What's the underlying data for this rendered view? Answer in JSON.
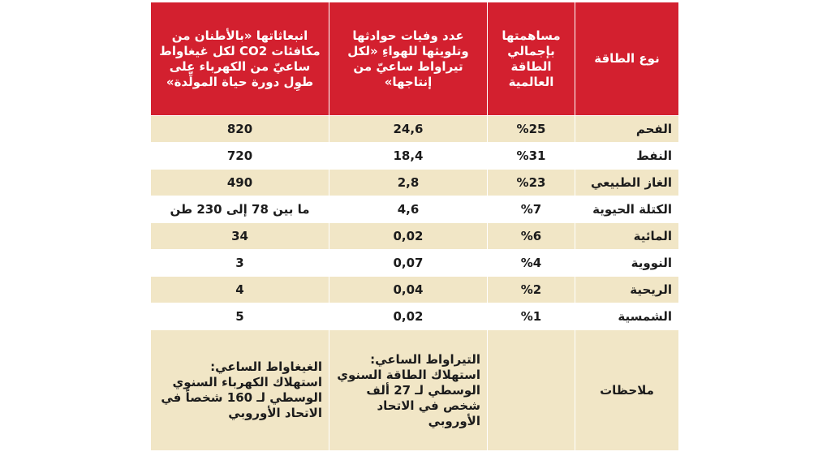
{
  "headers": {
    "type": "نوع الطاقة",
    "share": "مساهمتها بإجمالي الطاقة العالمية",
    "deaths": "عدد وفيات حوادثها وتلويثها للهواءِ «لكل تيراواط ساعيّ من إنتاجها»",
    "emissions": "انبعاثاتها «بالأطنان من مكافئات CO2 لكل غيغاواط ساعيّ من الكهرباء على طوِل دورة حياة المولِّدة»"
  },
  "rows": [
    {
      "type": "الفحم",
      "share": "%25",
      "deaths": "24,6",
      "emissions": "820"
    },
    {
      "type": "النفط",
      "share": "%31",
      "deaths": "18,4",
      "emissions": "720"
    },
    {
      "type": "الغاز الطبيعي",
      "share": "%23",
      "deaths": "2,8",
      "emissions": "490"
    },
    {
      "type": "الكتلة الحيوية",
      "share": "%7",
      "deaths": "4,6",
      "emissions": "ما بين 78 إلى 230 طن"
    },
    {
      "type": "المائية",
      "share": "%6",
      "deaths": "0,02",
      "emissions": "34"
    },
    {
      "type": "النووية",
      "share": "%4",
      "deaths": "0,07",
      "emissions": "3"
    },
    {
      "type": "الريحية",
      "share": "%2",
      "deaths": "0,04",
      "emissions": "4"
    },
    {
      "type": "الشمسية",
      "share": "%1",
      "deaths": "0,02",
      "emissions": "5"
    }
  ],
  "notes": {
    "label": "ملاحظات",
    "deaths_note": "التيراواط الساعي: استهلاك الطاقة السنوي الوسطي لـ 27 ألف شخص في الاتحاد الأوروبي",
    "emissions_note": "الغيغاواط الساعي: استهلاك الكهرباء السنوي الوسطي لـ 160 شخصاً في الاتحاد الأوروبي"
  },
  "colors": {
    "header_bg": "#d3202f",
    "row_bg": "#f1e6c6",
    "row_alt_bg": "#ffffff"
  }
}
